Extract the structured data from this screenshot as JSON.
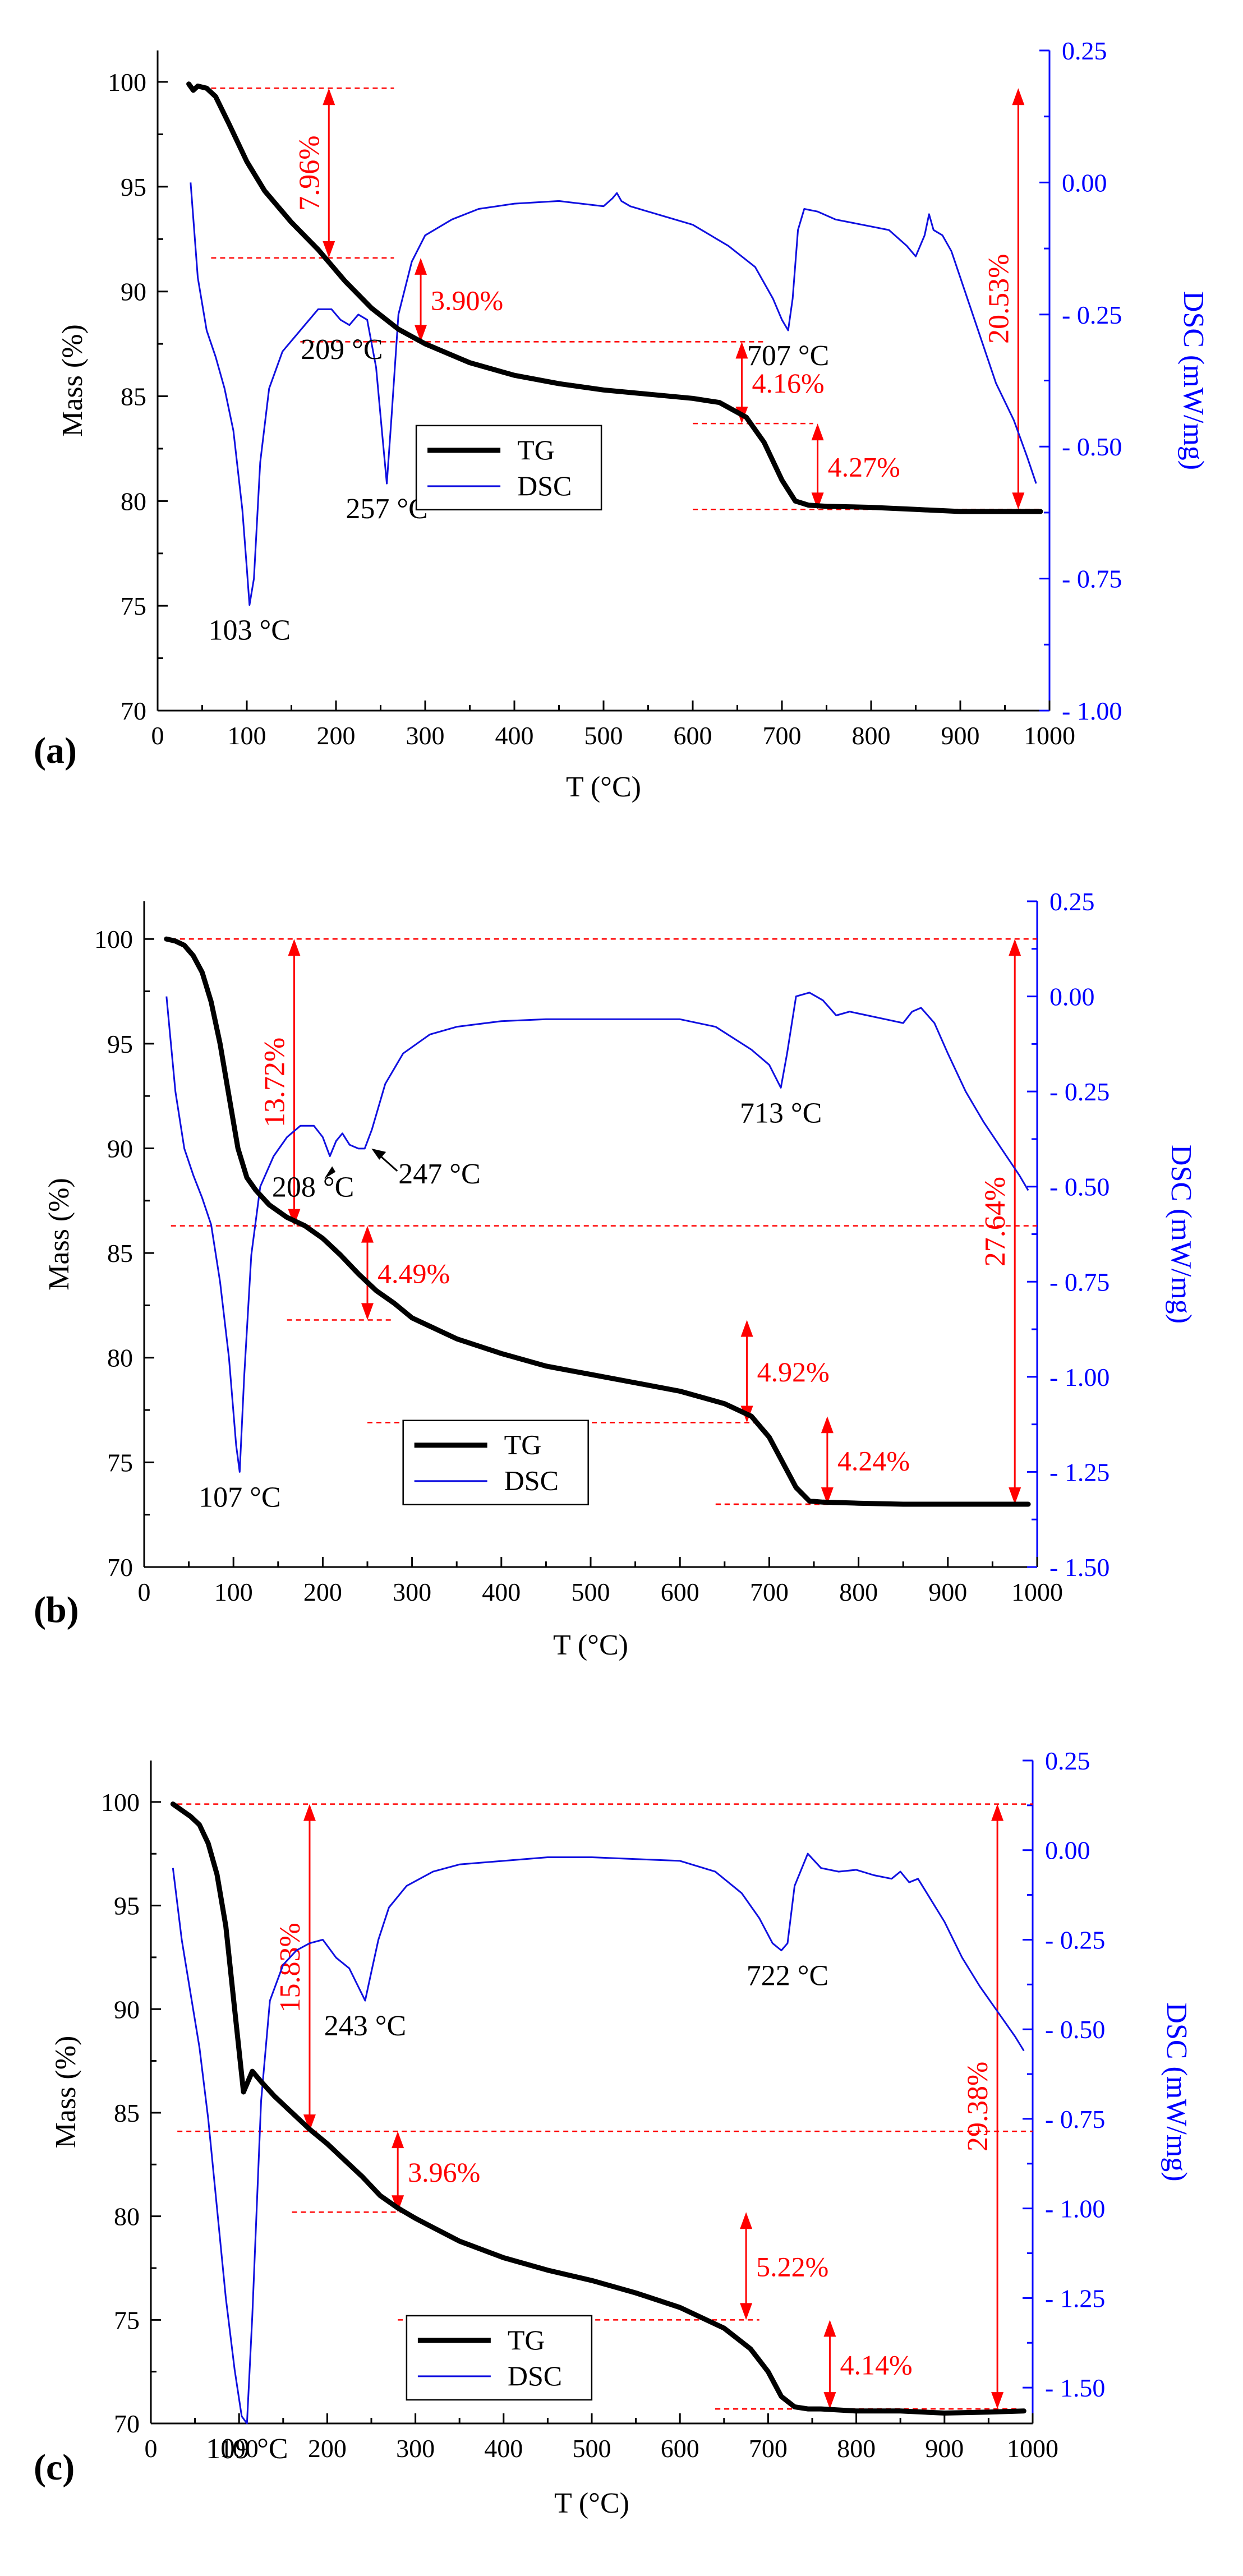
{
  "colors": {
    "tg": "#000000",
    "dsc": "#1010e0",
    "dsc_axis": "#0000ff",
    "annot": "#ff0000",
    "axis": "#000000"
  },
  "chart_data": [
    {
      "type": "line",
      "panel_label": "(a)",
      "xlabel": "T (°C)",
      "ylabel": "Mass (%)",
      "y2label": "DSC (mW/mg)",
      "xlim": [
        0,
        1000
      ],
      "ylim": [
        70,
        101.5
      ],
      "y2lim": [
        -1.0,
        0.25
      ],
      "x_ticks": [
        0,
        100,
        200,
        300,
        400,
        500,
        600,
        700,
        800,
        900,
        1000
      ],
      "y_ticks": [
        70,
        75,
        80,
        85,
        90,
        95,
        100
      ],
      "y2_ticks": [
        0.25,
        0.0,
        -0.25,
        -0.5,
        -0.75,
        -1.0
      ],
      "y2_tick_labels": [
        "0.25",
        "0.00",
        "- 0.25",
        "- 0.50",
        "- 0.75",
        "- 1.00"
      ],
      "legend": {
        "position": "lower-center",
        "entries": [
          "TG",
          "DSC"
        ]
      },
      "series": [
        {
          "name": "TG",
          "axis": "left",
          "x": [
            35,
            40,
            45,
            55,
            65,
            80,
            100,
            120,
            150,
            180,
            210,
            240,
            270,
            300,
            350,
            400,
            450,
            500,
            550,
            600,
            630,
            660,
            680,
            700,
            715,
            730,
            750,
            800,
            850,
            900,
            950,
            990
          ],
          "y": [
            99.9,
            99.6,
            99.8,
            99.7,
            99.3,
            98.0,
            96.2,
            94.8,
            93.3,
            92.0,
            90.5,
            89.2,
            88.2,
            87.5,
            86.6,
            86.0,
            85.6,
            85.3,
            85.1,
            84.9,
            84.7,
            84.0,
            82.8,
            81.0,
            80.0,
            79.8,
            79.75,
            79.7,
            79.6,
            79.5,
            79.5,
            79.5
          ]
        },
        {
          "name": "DSC",
          "axis": "right",
          "x": [
            37,
            45,
            55,
            65,
            75,
            85,
            95,
            100,
            103,
            108,
            115,
            125,
            140,
            160,
            180,
            195,
            205,
            215,
            225,
            235,
            245,
            252,
            257,
            262,
            270,
            285,
            300,
            330,
            360,
            400,
            450,
            500,
            510,
            515,
            520,
            530,
            560,
            600,
            640,
            670,
            690,
            700,
            707,
            712,
            718,
            725,
            740,
            760,
            790,
            820,
            840,
            850,
            860,
            865,
            870,
            880,
            890,
            900,
            920,
            940,
            960,
            975,
            985
          ],
          "y": [
            0.0,
            -0.18,
            -0.28,
            -0.33,
            -0.39,
            -0.47,
            -0.62,
            -0.73,
            -0.8,
            -0.75,
            -0.53,
            -0.39,
            -0.32,
            -0.28,
            -0.24,
            -0.24,
            -0.26,
            -0.27,
            -0.25,
            -0.26,
            -0.35,
            -0.48,
            -0.57,
            -0.45,
            -0.25,
            -0.15,
            -0.1,
            -0.07,
            -0.05,
            -0.04,
            -0.035,
            -0.045,
            -0.03,
            -0.02,
            -0.035,
            -0.045,
            -0.06,
            -0.08,
            -0.12,
            -0.16,
            -0.22,
            -0.26,
            -0.28,
            -0.22,
            -0.09,
            -0.05,
            -0.055,
            -0.07,
            -0.08,
            -0.09,
            -0.12,
            -0.14,
            -0.1,
            -0.06,
            -0.09,
            -0.1,
            -0.13,
            -0.18,
            -0.28,
            -0.38,
            -0.45,
            -0.52,
            -0.57
          ]
        }
      ],
      "peaks": [
        {
          "label": "103 °C",
          "x": 103,
          "y": -0.8,
          "align": "below"
        },
        {
          "label": "209 °C",
          "x": 209,
          "y": -0.26,
          "align": "below"
        },
        {
          "label": "257 °C",
          "x": 257,
          "y": -0.57,
          "align": "below"
        },
        {
          "label": "707 °C",
          "x": 707,
          "y": -0.28,
          "align": "below"
        }
      ],
      "mass_losses": [
        {
          "label": "7.96%",
          "x": 192,
          "y_top": 99.7,
          "y_bottom": 91.6,
          "guide_from": 60,
          "guide_to": 265
        },
        {
          "label": "3.90%",
          "x": 295,
          "y_top": 91.6,
          "y_bottom": 87.6,
          "guide_from": 160,
          "guide_to": 680
        },
        {
          "label": "4.16%",
          "x": 655,
          "y_top": 87.6,
          "y_bottom": 83.7,
          "guide_from": 600,
          "guide_to": 735
        },
        {
          "label": "4.27%",
          "x": 740,
          "y_top": 83.7,
          "y_bottom": 79.6,
          "guide_from": 600,
          "guide_to": 770
        },
        {
          "label": "20.53%",
          "x": 965,
          "y_top": 99.7,
          "y_bottom": 79.6,
          "guide_from": 600,
          "guide_to": 990
        }
      ]
    },
    {
      "type": "line",
      "panel_label": "(b)",
      "xlabel": "T (°C)",
      "ylabel": "Mass (%)",
      "y2label": "DSC (mW/mg)",
      "xlim": [
        0,
        1000
      ],
      "ylim": [
        70,
        101.8
      ],
      "y2lim": [
        -1.5,
        0.25
      ],
      "x_ticks": [
        0,
        100,
        200,
        300,
        400,
        500,
        600,
        700,
        800,
        900,
        1000
      ],
      "y_ticks": [
        70,
        75,
        80,
        85,
        90,
        95,
        100
      ],
      "y2_ticks": [
        0.25,
        0.0,
        -0.25,
        -0.5,
        -0.75,
        -1.0,
        -1.25,
        -1.5
      ],
      "y2_tick_labels": [
        "0.25",
        "0.00",
        "- 0.25",
        "- 0.50",
        "- 0.75",
        "- 1.00",
        "- 1.25",
        "- 1.50"
      ],
      "legend": {
        "position": "lower-center",
        "entries": [
          "TG",
          "DSC"
        ]
      },
      "series": [
        {
          "name": "TG",
          "axis": "left",
          "x": [
            25,
            35,
            45,
            55,
            65,
            75,
            85,
            95,
            105,
            115,
            125,
            140,
            160,
            180,
            200,
            220,
            240,
            260,
            280,
            300,
            350,
            400,
            450,
            500,
            550,
            600,
            650,
            680,
            700,
            715,
            730,
            745,
            760,
            800,
            850,
            900,
            950,
            990
          ],
          "y": [
            100.0,
            99.9,
            99.7,
            99.2,
            98.4,
            97.0,
            95.0,
            92.5,
            90.0,
            88.6,
            88.0,
            87.3,
            86.7,
            86.3,
            85.7,
            84.9,
            84.0,
            83.2,
            82.6,
            81.9,
            80.9,
            80.2,
            79.6,
            79.2,
            78.8,
            78.4,
            77.8,
            77.2,
            76.2,
            75.0,
            73.8,
            73.15,
            73.1,
            73.05,
            73.0,
            73.0,
            73.0,
            73.0
          ]
        },
        {
          "name": "DSC",
          "axis": "right",
          "x": [
            25,
            35,
            45,
            55,
            65,
            75,
            85,
            95,
            103,
            107,
            112,
            120,
            130,
            145,
            160,
            175,
            190,
            200,
            208,
            215,
            222,
            230,
            240,
            247,
            255,
            270,
            290,
            320,
            350,
            400,
            450,
            500,
            550,
            600,
            640,
            680,
            700,
            713,
            720,
            730,
            745,
            760,
            775,
            790,
            810,
            830,
            850,
            860,
            870,
            885,
            900,
            920,
            940,
            960,
            980,
            990
          ],
          "y": [
            0.0,
            -0.25,
            -0.4,
            -0.47,
            -0.53,
            -0.6,
            -0.75,
            -0.95,
            -1.18,
            -1.25,
            -1.0,
            -0.68,
            -0.5,
            -0.42,
            -0.37,
            -0.34,
            -0.34,
            -0.37,
            -0.42,
            -0.38,
            -0.36,
            -0.39,
            -0.4,
            -0.4,
            -0.35,
            -0.23,
            -0.15,
            -0.1,
            -0.08,
            -0.065,
            -0.06,
            -0.06,
            -0.06,
            -0.06,
            -0.08,
            -0.14,
            -0.18,
            -0.24,
            -0.15,
            0.0,
            0.01,
            -0.01,
            -0.05,
            -0.04,
            -0.05,
            -0.06,
            -0.07,
            -0.04,
            -0.03,
            -0.07,
            -0.15,
            -0.25,
            -0.33,
            -0.4,
            -0.47,
            -0.51
          ]
        }
      ],
      "peaks": [
        {
          "label": "107 °C",
          "x": 107,
          "y": -1.25,
          "align": "below"
        },
        {
          "label": "208 °C",
          "x": 208,
          "y": -0.42,
          "align": "below"
        },
        {
          "label": "247 °C",
          "x": 247,
          "y": -0.4,
          "align": "right"
        },
        {
          "label": "713 °C",
          "x": 713,
          "y": -0.24,
          "align": "below"
        }
      ],
      "mass_losses": [
        {
          "label": "13.72%",
          "x": 168,
          "y_top": 100.0,
          "y_bottom": 86.3,
          "guide_from": 30,
          "guide_to": 1000
        },
        {
          "label": "4.49%",
          "x": 250,
          "y_top": 86.3,
          "y_bottom": 81.8,
          "guide_from": 160,
          "guide_to": 280
        },
        {
          "label": "4.92%",
          "x": 675,
          "y_top": 81.8,
          "y_bottom": 76.9,
          "guide_from": 250,
          "guide_to": 685
        },
        {
          "label": "4.24%",
          "x": 765,
          "y_top": 77.2,
          "y_bottom": 73.0,
          "guide_from": 640,
          "guide_to": 775
        },
        {
          "label": "27.64%",
          "x": 975,
          "y_top": 100.0,
          "y_bottom": 73.0,
          "guide_from": 640,
          "guide_to": 985
        }
      ]
    },
    {
      "type": "line",
      "panel_label": "(c)",
      "xlabel": "T (°C)",
      "ylabel": "Mass (%)",
      "y2label": "DSC (mW/mg)",
      "xlim": [
        0,
        1000
      ],
      "ylim": [
        70,
        102.0
      ],
      "y2lim": [
        -1.6,
        0.25
      ],
      "x_ticks": [
        0,
        100,
        200,
        300,
        400,
        500,
        600,
        700,
        800,
        900,
        1000
      ],
      "y_ticks": [
        70,
        75,
        80,
        85,
        90,
        95,
        100
      ],
      "y2_ticks": [
        0.25,
        0.0,
        -0.25,
        -0.5,
        -0.75,
        -1.0,
        -1.25,
        -1.5
      ],
      "y2_tick_labels": [
        "0.25",
        "0.00",
        "- 0.25",
        "- 0.50",
        "- 0.75",
        "- 1.00",
        "- 1.25",
        "- 1.50"
      ],
      "legend": {
        "position": "lower-center",
        "entries": [
          "TG",
          "DSC"
        ]
      },
      "series": [
        {
          "name": "TG",
          "axis": "left",
          "x": [
            25,
            35,
            45,
            55,
            65,
            75,
            85,
            95,
            105,
            115,
            125,
            140,
            160,
            180,
            200,
            220,
            240,
            260,
            280,
            300,
            350,
            400,
            450,
            500,
            550,
            600,
            650,
            680,
            700,
            715,
            730,
            745,
            760,
            800,
            850,
            900,
            950,
            990
          ],
          "y": [
            99.9,
            99.6,
            99.3,
            98.9,
            98.0,
            96.5,
            94.0,
            90.0,
            86.0,
            87.0,
            86.5,
            85.8,
            85.0,
            84.2,
            83.5,
            82.7,
            81.9,
            81.0,
            80.4,
            79.9,
            78.8,
            78.0,
            77.4,
            76.9,
            76.3,
            75.6,
            74.6,
            73.6,
            72.5,
            71.3,
            70.8,
            70.7,
            70.7,
            70.6,
            70.6,
            70.5,
            70.55,
            70.6
          ]
        },
        {
          "name": "DSC",
          "axis": "right",
          "x": [
            25,
            35,
            45,
            55,
            65,
            75,
            85,
            95,
            103,
            109,
            115,
            125,
            135,
            150,
            165,
            180,
            195,
            210,
            225,
            235,
            243,
            250,
            258,
            270,
            290,
            320,
            350,
            400,
            450,
            500,
            550,
            600,
            640,
            670,
            690,
            705,
            715,
            722,
            730,
            745,
            760,
            780,
            800,
            820,
            840,
            850,
            860,
            870,
            880,
            900,
            920,
            940,
            960,
            980,
            990
          ],
          "y": [
            -0.05,
            -0.25,
            -0.4,
            -0.55,
            -0.75,
            -1.0,
            -1.25,
            -1.45,
            -1.58,
            -1.6,
            -1.3,
            -0.7,
            -0.42,
            -0.32,
            -0.28,
            -0.26,
            -0.25,
            -0.3,
            -0.33,
            -0.38,
            -0.42,
            -0.34,
            -0.25,
            -0.16,
            -0.1,
            -0.06,
            -0.04,
            -0.03,
            -0.02,
            -0.02,
            -0.025,
            -0.03,
            -0.06,
            -0.12,
            -0.19,
            -0.26,
            -0.28,
            -0.26,
            -0.1,
            -0.01,
            -0.05,
            -0.06,
            -0.055,
            -0.07,
            -0.08,
            -0.06,
            -0.09,
            -0.08,
            -0.12,
            -0.2,
            -0.3,
            -0.38,
            -0.45,
            -0.52,
            -0.56
          ]
        }
      ],
      "peaks": [
        {
          "label": "109 °C",
          "x": 109,
          "y": -1.6,
          "align": "below"
        },
        {
          "label": "243 °C",
          "x": 243,
          "y": -0.42,
          "align": "below"
        },
        {
          "label": "722 °C",
          "x": 722,
          "y": -0.28,
          "align": "below"
        }
      ],
      "mass_losses": [
        {
          "label": "15.83%",
          "x": 180,
          "y_top": 99.9,
          "y_bottom": 84.1,
          "guide_from": 30,
          "guide_to": 1000
        },
        {
          "label": "3.96%",
          "x": 280,
          "y_top": 84.1,
          "y_bottom": 80.2,
          "guide_from": 160,
          "guide_to": 290
        },
        {
          "label": "5.22%",
          "x": 675,
          "y_top": 80.2,
          "y_bottom": 75.0,
          "guide_from": 280,
          "guide_to": 690
        },
        {
          "label": "4.14%",
          "x": 770,
          "y_top": 75.0,
          "y_bottom": 70.7,
          "guide_from": 640,
          "guide_to": 780
        },
        {
          "label": "29.38%",
          "x": 960,
          "y_top": 99.9,
          "y_bottom": 70.7,
          "guide_from": 640,
          "guide_to": 985
        }
      ]
    }
  ]
}
